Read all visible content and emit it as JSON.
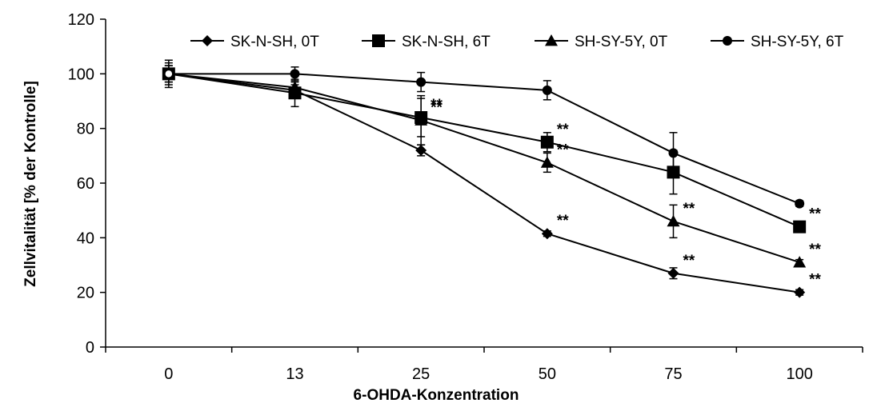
{
  "chart_data": {
    "type": "line",
    "title": "",
    "xlabel": "6-OHDA-Konzentration",
    "ylabel": "Zellvitalität [% der Kontrolle]",
    "categories": [
      "0",
      "13",
      "25",
      "50",
      "75",
      "100"
    ],
    "ylim": [
      0,
      120
    ],
    "yticks": [
      "0",
      "20",
      "40",
      "60",
      "80",
      "100",
      "120"
    ],
    "grid": false,
    "legend_position": "top",
    "series": [
      {
        "name": "SK-N-SH, 0T",
        "marker": "diamond",
        "values": [
          100,
          94,
          72,
          41.5,
          27,
          20
        ],
        "errors": [
          4,
          2,
          2,
          1,
          2,
          1
        ],
        "significance": [
          "",
          "",
          "",
          "**",
          "**",
          "**"
        ]
      },
      {
        "name": "SK-N-SH, 6T",
        "marker": "square",
        "values": [
          100,
          93,
          84,
          75,
          64,
          44
        ],
        "errors": [
          3,
          5,
          7,
          3.5,
          8,
          1
        ],
        "significance": [
          "",
          "",
          "**",
          "**",
          "",
          "**"
        ]
      },
      {
        "name": "SH-SY-5Y, 0T",
        "marker": "triangle",
        "values": [
          100,
          95,
          83,
          67.5,
          46,
          31
        ],
        "errors": [
          3,
          2,
          9,
          3.5,
          6,
          1
        ],
        "significance": [
          "",
          "",
          "**",
          "**",
          "**",
          "**"
        ]
      },
      {
        "name": "SH-SY-5Y, 6T",
        "marker": "circle",
        "values": [
          100,
          100,
          97,
          94,
          71,
          52.5
        ],
        "errors": [
          5,
          2.5,
          3.5,
          3.5,
          7.5,
          1
        ],
        "significance": [
          "",
          "",
          "",
          "",
          "",
          ""
        ]
      }
    ]
  }
}
